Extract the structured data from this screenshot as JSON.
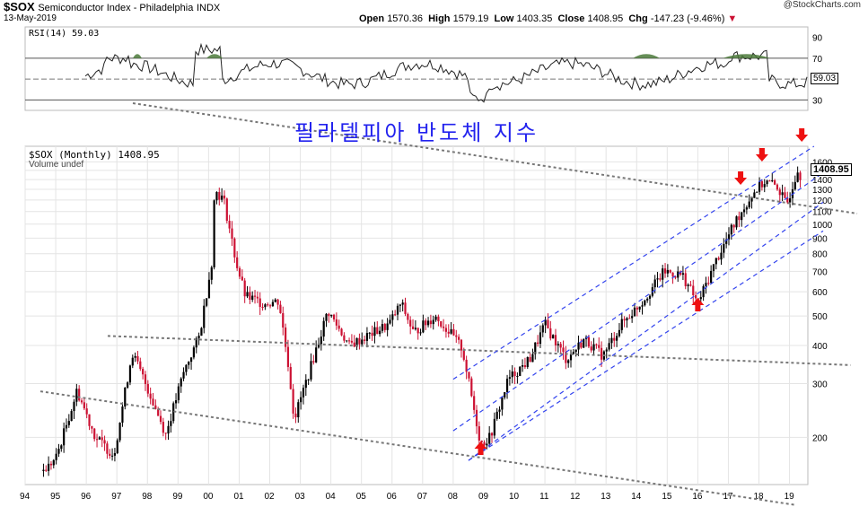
{
  "header": {
    "symbol": "$SOX",
    "name": "Semiconductor Index - Philadelphia",
    "exchange": "INDX",
    "date": "13-May-2019",
    "open_label": "Open",
    "open": "1570.36",
    "high_label": "High",
    "high": "1579.19",
    "low_label": "Low",
    "low": "1403.35",
    "close_label": "Close",
    "close": "1408.95",
    "chg_label": "Chg",
    "chg": "-147.23 (-9.46%)",
    "credit": "@StockCharts.com"
  },
  "rsi": {
    "label": "RSI(14) 59.03",
    "last": "59.03",
    "ticks": [
      "90",
      "70",
      "50",
      "30"
    ]
  },
  "main": {
    "label": "$SOX (Monthly) 1408.95",
    "volume_label": "Volume undef",
    "last": "1408.95",
    "korean_title": "필라델피아 반도체 지수"
  },
  "colors": {
    "up": "#000000",
    "down": "#cc1133",
    "trend_gray": "#777777",
    "channel_blue": "#3344ee",
    "arrow": "#ee1111",
    "rsi_fill": "#4b7a3a"
  },
  "chart_data": {
    "type": "candlestick",
    "title": "$SOX (Monthly) 1408.95",
    "scale": "log",
    "ylim": [
      140,
      1800
    ],
    "y_ticks": [
      200,
      300,
      400,
      500,
      600,
      700,
      800,
      900,
      1000,
      1100,
      1200,
      1300,
      1400,
      1500,
      1600
    ],
    "x_ticks": [
      "94",
      "95",
      "96",
      "97",
      "98",
      "99",
      "00",
      "01",
      "02",
      "03",
      "04",
      "05",
      "06",
      "07",
      "08",
      "09",
      "10",
      "11",
      "12",
      "13",
      "14",
      "15",
      "16",
      "17",
      "18",
      "19"
    ],
    "approx_monthly_close_keypoints": [
      {
        "x": 1994.6,
        "y": 155
      },
      {
        "x": 1995.0,
        "y": 170
      },
      {
        "x": 1995.7,
        "y": 285
      },
      {
        "x": 1996.3,
        "y": 200
      },
      {
        "x": 1996.9,
        "y": 175
      },
      {
        "x": 1997.5,
        "y": 380
      },
      {
        "x": 1998.0,
        "y": 290
      },
      {
        "x": 1998.6,
        "y": 205
      },
      {
        "x": 1999.2,
        "y": 330
      },
      {
        "x": 1999.7,
        "y": 430
      },
      {
        "x": 2000.1,
        "y": 750
      },
      {
        "x": 2000.2,
        "y": 1300
      },
      {
        "x": 2000.5,
        "y": 1200
      },
      {
        "x": 2000.9,
        "y": 750
      },
      {
        "x": 2001.2,
        "y": 580
      },
      {
        "x": 2001.8,
        "y": 550
      },
      {
        "x": 2002.3,
        "y": 560
      },
      {
        "x": 2002.6,
        "y": 350
      },
      {
        "x": 2002.8,
        "y": 230
      },
      {
        "x": 2003.3,
        "y": 330
      },
      {
        "x": 2003.9,
        "y": 520
      },
      {
        "x": 2004.6,
        "y": 400
      },
      {
        "x": 2005.2,
        "y": 430
      },
      {
        "x": 2005.9,
        "y": 470
      },
      {
        "x": 2006.3,
        "y": 550
      },
      {
        "x": 2006.7,
        "y": 440
      },
      {
        "x": 2007.4,
        "y": 500
      },
      {
        "x": 2007.9,
        "y": 440
      },
      {
        "x": 2008.3,
        "y": 390
      },
      {
        "x": 2008.9,
        "y": 190
      },
      {
        "x": 2009.2,
        "y": 200
      },
      {
        "x": 2009.8,
        "y": 310
      },
      {
        "x": 2010.5,
        "y": 360
      },
      {
        "x": 2011.0,
        "y": 470
      },
      {
        "x": 2011.7,
        "y": 360
      },
      {
        "x": 2012.3,
        "y": 420
      },
      {
        "x": 2012.9,
        "y": 370
      },
      {
        "x": 2013.5,
        "y": 470
      },
      {
        "x": 2014.2,
        "y": 560
      },
      {
        "x": 2014.9,
        "y": 700
      },
      {
        "x": 2015.5,
        "y": 680
      },
      {
        "x": 2016.0,
        "y": 550
      },
      {
        "x": 2016.6,
        "y": 760
      },
      {
        "x": 2017.3,
        "y": 1050
      },
      {
        "x": 2017.9,
        "y": 1300
      },
      {
        "x": 2018.2,
        "y": 1380
      },
      {
        "x": 2018.6,
        "y": 1330
      },
      {
        "x": 2018.9,
        "y": 1150
      },
      {
        "x": 2019.2,
        "y": 1450
      },
      {
        "x": 2019.3,
        "y": 1550
      },
      {
        "x": 2019.37,
        "y": 1408.95
      }
    ],
    "annotations": [
      {
        "type": "arrow_up",
        "x": 2008.9,
        "label": ""
      },
      {
        "type": "arrow_up",
        "x": 2016.0,
        "label": ""
      },
      {
        "type": "arrow_down",
        "x": 2017.4,
        "label": ""
      },
      {
        "type": "arrow_down",
        "x": 2018.1,
        "label": ""
      },
      {
        "type": "arrow_down",
        "x": 2019.4,
        "label": ""
      }
    ]
  }
}
